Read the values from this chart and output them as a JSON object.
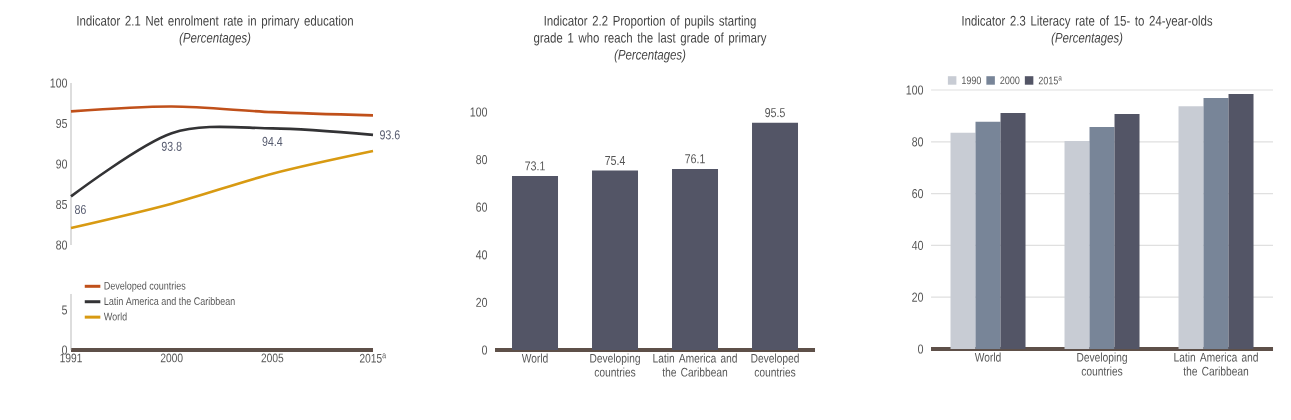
{
  "chart_data": [
    {
      "type": "line",
      "title": "Indicator 2.1 Net enrolment rate in primary education",
      "subtitle": "*(Percentages)*",
      "series": [
        {
          "name": "Developed countries",
          "color": "#c0501a",
          "values": [
            96.5,
            97.1,
            96.4,
            96.0
          ]
        },
        {
          "name": "Latin America and the Caribbean",
          "color": "#333335",
          "values": [
            86,
            93.8,
            94.4,
            93.6
          ],
          "value_labels": [
            "86",
            "93.8",
            "94.4",
            "93.6"
          ]
        },
        {
          "name": "World",
          "color": "#d89a12",
          "values": [
            82.1,
            85.1,
            88.8,
            91.6
          ]
        }
      ],
      "ylim": [
        80,
        100
      ],
      "yticks": [
        80,
        85,
        90,
        95,
        100
      ],
      "tick_labels": "y",
      "legend": "bottom",
      "marker": "none",
      "line_style": "solid"
    },
    {
      "type": "line",
      "categories": [
        "1991",
        "2000",
        "2005",
        "2015$^{a}$"
      ],
      "ylim": [
        0,
        7
      ],
      "yticks": [
        0,
        5
      ]
    },
    {
      "type": "bar",
      "title": "Indicator 2.2 Proportion of pupils starting grade 1 who reach the last grade of primary",
      "subtitle": "*(Percentages)*",
      "categories": [
        "World",
        "Developing countries",
        "Latin America and the Caribbean",
        "Developed countries"
      ],
      "values": [
        73.1,
        75.4,
        76.1,
        95.5
      ],
      "color": "#535566",
      "data_labels": true,
      "ylim": [
        0,
        100
      ],
      "yticks": [
        0,
        20,
        40,
        60,
        80,
        100
      ]
    },
    {
      "type": "bar",
      "title": "Indicator 2.3 Literacy rate of 15- to 24-year-olds",
      "subtitle": "*(Percentages)*",
      "categories": [
        "World",
        "Developing countries",
        "Latin America and the Caribbean"
      ],
      "series": [
        {
          "name": "1990",
          "color": "#c8ccd4",
          "values": [
            83.5,
            80.3,
            93.7
          ]
        },
        {
          "name": "2000",
          "color": "#788598",
          "values": [
            87.7,
            85.7,
            96.9
          ]
        },
        {
          "name": "2015$^{a}$",
          "color": "#535566",
          "values": [
            91.1,
            90.7,
            98.5
          ]
        }
      ],
      "ylim": [
        0,
        100
      ],
      "yticks": [
        0,
        20,
        40,
        60,
        80,
        100
      ],
      "grid": "y",
      "legend": "top left"
    }
  ]
}
